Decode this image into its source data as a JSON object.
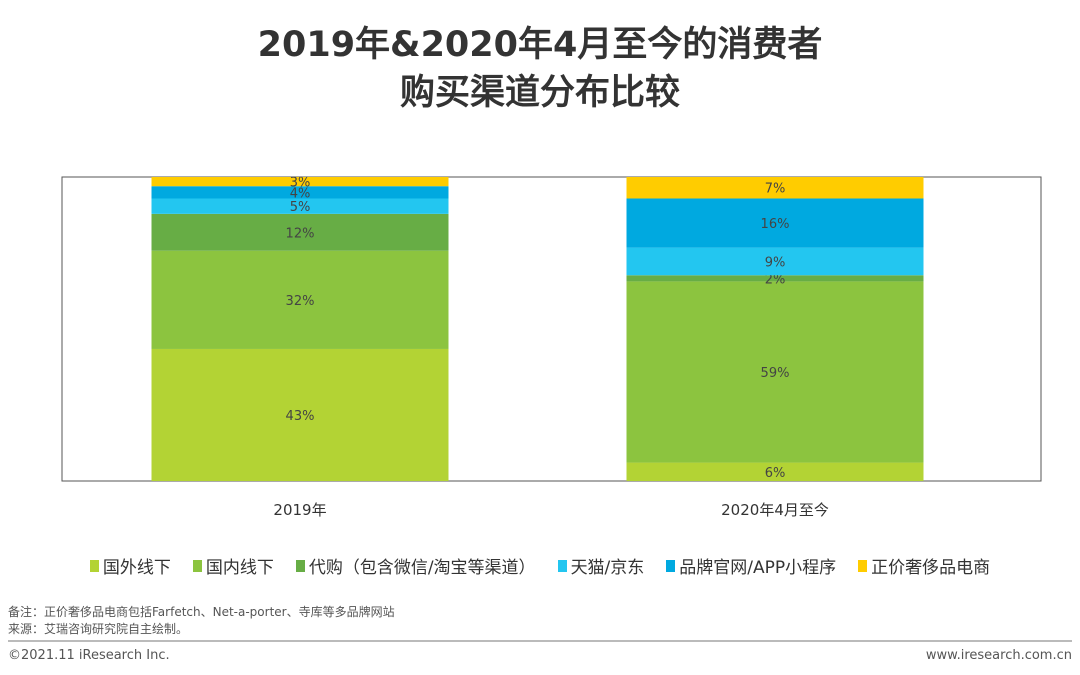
{
  "chart_data": {
    "type": "stacked-bar",
    "title": [
      "2019年&2020年4月至今的消费者",
      "购买渠道分布比较"
    ],
    "categories": [
      "2019年",
      "2020年4月至今"
    ],
    "series": [
      {
        "name": "国外线下",
        "color": "#b3d334",
        "values": [
          43,
          6
        ]
      },
      {
        "name": "国内线下",
        "color": "#8cc43f",
        "values": [
          32,
          59
        ]
      },
      {
        "name": "代购（包含微信/淘宝等渠道）",
        "color": "#67ad45",
        "values": [
          12,
          2
        ]
      },
      {
        "name": "天猫/京东",
        "color": "#23c6f0",
        "values": [
          5,
          9
        ]
      },
      {
        "name": "品牌官网/APP小程序",
        "color": "#00a9e0",
        "values": [
          4,
          16
        ]
      },
      {
        "name": "正价奢侈品电商",
        "color": "#ffcc00",
        "values": [
          3,
          7
        ]
      }
    ],
    "unit": "%",
    "legend": "bottom",
    "grid": false
  },
  "notes": {
    "remark": "备注：正价奢侈品电商包括Farfetch、Net-a-porter、寺库等多品牌网站",
    "source": "来源：艾瑞咨询研究院自主绘制。"
  },
  "footer": {
    "copyright": "©2021.11 iResearch Inc.",
    "website": "www.iresearch.com.cn"
  }
}
